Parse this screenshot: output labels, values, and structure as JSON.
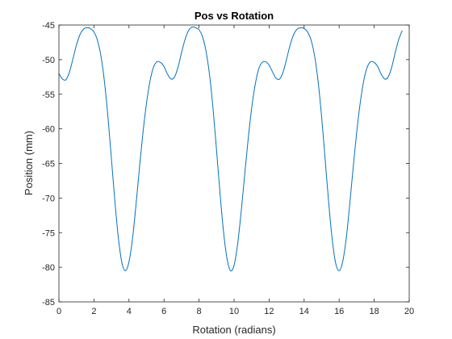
{
  "chart_data": {
    "type": "line",
    "title": "Pos vs Rotation",
    "xlabel": "Rotation (radians)",
    "ylabel": "Position (mm)",
    "xlim": [
      0,
      20
    ],
    "ylim": [
      -85,
      -45
    ],
    "grid": false,
    "legend": "none",
    "x_ticks": [
      0,
      2,
      4,
      6,
      8,
      10,
      12,
      14,
      16,
      18,
      20
    ],
    "x_tick_labels": [
      "0",
      "2",
      "4",
      "6",
      "8",
      "10",
      "12",
      "14",
      "16",
      "18",
      "20"
    ],
    "y_ticks": [
      -45,
      -50,
      -55,
      -60,
      -65,
      -70,
      -75,
      -80,
      -85
    ],
    "y_tick_labels": [
      "-45",
      "-50",
      "-55",
      "-60",
      "-65",
      "-70",
      "-75",
      "-80",
      "-85"
    ],
    "series": [
      {
        "color": "#0072bd",
        "x": [
          0,
          0.2,
          0.4,
          0.6,
          0.8,
          1.0,
          1.2,
          1.4,
          1.6,
          1.8,
          2.0,
          2.2,
          2.4,
          2.6,
          2.8,
          3.0,
          3.2,
          3.4,
          3.6,
          3.8,
          4.0,
          4.2,
          4.4,
          4.6,
          4.8,
          5.0,
          5.2,
          5.4,
          5.6,
          5.8,
          6.0,
          6.2,
          6.4,
          6.6,
          6.8,
          7.0,
          7.2,
          7.4,
          7.6,
          7.8,
          8.0,
          8.2,
          8.4,
          8.6,
          8.8,
          9.0,
          9.2,
          9.4,
          9.6,
          9.8,
          10.0,
          10.2,
          10.4,
          10.6,
          10.8,
          11.0,
          11.2,
          11.4,
          11.6,
          11.8,
          12.0,
          12.2,
          12.4,
          12.6,
          12.8,
          13.0,
          13.2,
          13.4,
          13.6,
          13.8,
          14.0,
          14.2,
          14.4,
          14.6,
          14.8,
          15.0,
          15.2,
          15.4,
          15.6,
          15.8,
          16.0,
          16.2,
          16.4,
          16.6,
          16.8,
          17.0,
          17.2,
          17.4,
          17.6,
          17.8,
          18.0,
          18.2,
          18.4,
          18.6,
          18.8,
          19.0,
          19.2,
          19.4,
          19.6
        ],
        "y": [
          -52.0,
          -52.8,
          -52.9,
          -51.8,
          -49.9,
          -47.9,
          -46.4,
          -45.6,
          -45.4,
          -45.5,
          -46.0,
          -47.2,
          -49.5,
          -53.2,
          -58.3,
          -64.4,
          -70.6,
          -75.9,
          -79.4,
          -80.5,
          -79.2,
          -75.9,
          -71.0,
          -65.6,
          -60.5,
          -56.3,
          -53.1,
          -51.1,
          -50.3,
          -50.4,
          -51.0,
          -52.1,
          -52.8,
          -52.5,
          -51.1,
          -49.0,
          -47.1,
          -45.8,
          -45.3,
          -45.4,
          -45.7,
          -46.7,
          -48.8,
          -52.2,
          -57.1,
          -63.1,
          -69.4,
          -74.9,
          -78.8,
          -80.5,
          -79.7,
          -76.7,
          -72.1,
          -66.8,
          -61.6,
          -57.1,
          -53.7,
          -51.4,
          -50.4,
          -50.3,
          -50.8,
          -51.8,
          -52.7,
          -52.8,
          -51.8,
          -49.9,
          -47.9,
          -46.4,
          -45.6,
          -45.4,
          -45.5,
          -46.0,
          -47.2,
          -49.5,
          -53.2,
          -58.3,
          -64.4,
          -70.6,
          -75.9,
          -79.4,
          -80.5,
          -79.2,
          -75.9,
          -71.0,
          -65.6,
          -60.5,
          -56.3,
          -53.1,
          -51.1,
          -50.3,
          -50.4,
          -51.0,
          -52.1,
          -52.8,
          -52.5,
          -51.1,
          -49.0,
          -47.1,
          -45.8
        ]
      }
    ]
  }
}
